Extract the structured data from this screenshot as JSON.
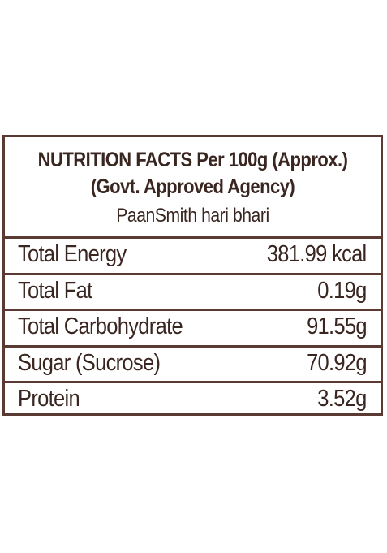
{
  "header": {
    "title_line1": "NUTRITION FACTS Per 100g (Approx.)",
    "title_line2": "(Govt. Approved Agency)",
    "product_name": "PaanSmith hari bhari"
  },
  "rows": [
    {
      "label": "Total Energy",
      "value": "381.99 kcal"
    },
    {
      "label": "Total Fat",
      "value": "0.19g"
    },
    {
      "label": "Total Carbohydrate",
      "value": "91.55g"
    },
    {
      "label": "Sugar (Sucrose)",
      "value": "70.92g"
    },
    {
      "label": "Protein",
      "value": "3.52g"
    }
  ],
  "colors": {
    "border": "#5a3a32",
    "text": "#3a2620",
    "background": "#ffffff"
  }
}
